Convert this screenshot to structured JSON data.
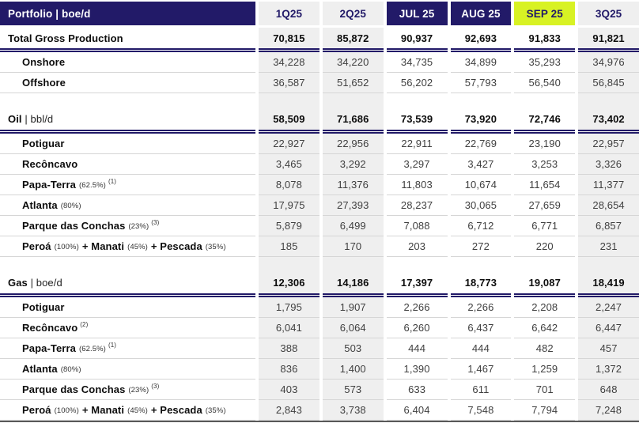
{
  "colors": {
    "navy": "#221a68",
    "lime": "#d8f224",
    "column_gray": "#efefef",
    "row_line": "#d6d6d6",
    "bottom_bar": "#595959"
  },
  "header": {
    "title": "Portfolio | boe/d",
    "columns": [
      {
        "label": "1Q25",
        "type": "quarter"
      },
      {
        "label": "2Q25",
        "type": "quarter"
      },
      {
        "label": "JUL 25",
        "type": "month"
      },
      {
        "label": "AUG 25",
        "type": "month"
      },
      {
        "label": "SEP 25",
        "type": "month-current"
      },
      {
        "label": "3Q25",
        "type": "quarter"
      }
    ]
  },
  "rows": [
    {
      "kind": "total",
      "divider": true,
      "label": [
        {
          "text": "Total Gross Production",
          "style": "bold"
        }
      ],
      "values": [
        "70,815",
        "85,872",
        "90,937",
        "92,693",
        "91,833",
        "91,821"
      ]
    },
    {
      "kind": "sub",
      "label": [
        {
          "text": "Onshore",
          "style": "bold"
        }
      ],
      "values": [
        "34,228",
        "34,220",
        "34,735",
        "34,899",
        "35,293",
        "34,976"
      ]
    },
    {
      "kind": "sub",
      "label": [
        {
          "text": "Offshore",
          "style": "bold"
        }
      ],
      "values": [
        "36,587",
        "51,652",
        "56,202",
        "57,793",
        "56,540",
        "56,845"
      ]
    },
    {
      "kind": "spacer"
    },
    {
      "kind": "section",
      "divider": true,
      "label": [
        {
          "text": "Oil",
          "style": "bold"
        },
        {
          "text": " | bbl/d",
          "style": "regular"
        }
      ],
      "values": [
        "58,509",
        "71,686",
        "73,539",
        "73,920",
        "72,746",
        "73,402"
      ]
    },
    {
      "kind": "sub",
      "label": [
        {
          "text": "Potiguar",
          "style": "bold"
        }
      ],
      "values": [
        "22,927",
        "22,956",
        "22,911",
        "22,769",
        "23,190",
        "22,957"
      ]
    },
    {
      "kind": "sub",
      "label": [
        {
          "text": "Recôncavo",
          "style": "bold"
        }
      ],
      "values": [
        "3,465",
        "3,292",
        "3,297",
        "3,427",
        "3,253",
        "3,326"
      ]
    },
    {
      "kind": "sub",
      "label": [
        {
          "text": "Papa-Terra",
          "style": "bold"
        },
        {
          "text": "(62.5%)",
          "style": "small"
        },
        {
          "text": "(1)",
          "style": "sup"
        }
      ],
      "values": [
        "8,078",
        "11,376",
        "11,803",
        "10,674",
        "11,654",
        "11,377"
      ]
    },
    {
      "kind": "sub",
      "label": [
        {
          "text": "Atlanta",
          "style": "bold"
        },
        {
          "text": "(80%)",
          "style": "small"
        }
      ],
      "values": [
        "17,975",
        "27,393",
        "28,237",
        "30,065",
        "27,659",
        "28,654"
      ]
    },
    {
      "kind": "sub",
      "label": [
        {
          "text": "Parque das Conchas",
          "style": "bold"
        },
        {
          "text": "(23%)",
          "style": "small"
        },
        {
          "text": "(3)",
          "style": "sup"
        }
      ],
      "values": [
        "5,879",
        "6,499",
        "7,088",
        "6,712",
        "6,771",
        "6,857"
      ]
    },
    {
      "kind": "sub",
      "label": [
        {
          "text": "Peroá",
          "style": "bold"
        },
        {
          "text": "(100%)",
          "style": "small"
        },
        {
          "text": "+ Manati",
          "style": "plus"
        },
        {
          "text": "(45%)",
          "style": "small"
        },
        {
          "text": "+ Pescada",
          "style": "plus"
        },
        {
          "text": "(35%)",
          "style": "small"
        }
      ],
      "values": [
        "185",
        "170",
        "203",
        "272",
        "220",
        "231"
      ]
    },
    {
      "kind": "spacer"
    },
    {
      "kind": "section",
      "divider": true,
      "label": [
        {
          "text": "Gas",
          "style": "bold"
        },
        {
          "text": " | boe/d",
          "style": "regular"
        }
      ],
      "values": [
        "12,306",
        "14,186",
        "17,397",
        "18,773",
        "19,087",
        "18,419"
      ]
    },
    {
      "kind": "sub",
      "label": [
        {
          "text": "Potiguar",
          "style": "bold"
        }
      ],
      "values": [
        "1,795",
        "1,907",
        "2,266",
        "2,266",
        "2,208",
        "2,247"
      ]
    },
    {
      "kind": "sub",
      "label": [
        {
          "text": "Recôncavo",
          "style": "bold"
        },
        {
          "text": "(2)",
          "style": "sup"
        }
      ],
      "values": [
        "6,041",
        "6,064",
        "6,260",
        "6,437",
        "6,642",
        "6,447"
      ]
    },
    {
      "kind": "sub",
      "label": [
        {
          "text": "Papa-Terra",
          "style": "bold"
        },
        {
          "text": "(62.5%)",
          "style": "small"
        },
        {
          "text": "(1)",
          "style": "sup"
        }
      ],
      "values": [
        "388",
        "503",
        "444",
        "444",
        "482",
        "457"
      ]
    },
    {
      "kind": "sub",
      "label": [
        {
          "text": "Atlanta",
          "style": "bold"
        },
        {
          "text": "(80%)",
          "style": "small"
        }
      ],
      "values": [
        "836",
        "1,400",
        "1,390",
        "1,467",
        "1,259",
        "1,372"
      ]
    },
    {
      "kind": "sub",
      "label": [
        {
          "text": "Parque das Conchas",
          "style": "bold"
        },
        {
          "text": "(23%)",
          "style": "small"
        },
        {
          "text": "(3)",
          "style": "sup"
        }
      ],
      "values": [
        "403",
        "573",
        "633",
        "611",
        "701",
        "648"
      ]
    },
    {
      "kind": "sub",
      "label": [
        {
          "text": "Peroá",
          "style": "bold"
        },
        {
          "text": "(100%)",
          "style": "small"
        },
        {
          "text": "+ Manati",
          "style": "plus"
        },
        {
          "text": "(45%)",
          "style": "small"
        },
        {
          "text": "+ Pescada",
          "style": "plus"
        },
        {
          "text": "(35%)",
          "style": "small"
        }
      ],
      "values": [
        "2,843",
        "3,738",
        "6,404",
        "7,548",
        "7,794",
        "7,248"
      ]
    }
  ]
}
